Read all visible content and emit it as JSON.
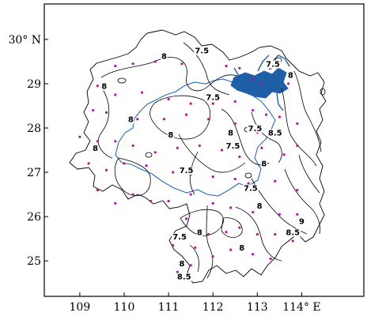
{
  "map": {
    "y_ticks": [
      {
        "value": 30,
        "label": "30° N"
      },
      {
        "value": 29,
        "label": "29"
      },
      {
        "value": 28,
        "label": "28"
      },
      {
        "value": 27,
        "label": "27"
      },
      {
        "value": 26,
        "label": "26"
      },
      {
        "value": 25,
        "label": "25"
      }
    ],
    "x_ticks": [
      {
        "value": 109,
        "label": "109"
      },
      {
        "value": 110,
        "label": "110"
      },
      {
        "value": 111,
        "label": "111"
      },
      {
        "value": 112,
        "label": "112"
      },
      {
        "value": 113,
        "label": "113"
      },
      {
        "value": 114,
        "label": "114° E"
      }
    ],
    "x_range": [
      108.2,
      115.4
    ],
    "y_range": [
      24.2,
      30.8
    ],
    "contour_labels": [
      {
        "text": "8",
        "lon": 110.9,
        "lat": 29.58
      },
      {
        "text": "7.5",
        "lon": 111.75,
        "lat": 29.7
      },
      {
        "text": "8",
        "lon": 109.55,
        "lat": 28.9
      },
      {
        "text": "7.5",
        "lon": 112.0,
        "lat": 28.65
      },
      {
        "text": "7.5",
        "lon": 113.35,
        "lat": 29.4
      },
      {
        "text": "8",
        "lon": 113.75,
        "lat": 29.15
      },
      {
        "text": "8",
        "lon": 110.15,
        "lat": 28.15
      },
      {
        "text": "8",
        "lon": 111.05,
        "lat": 27.8
      },
      {
        "text": "8",
        "lon": 112.4,
        "lat": 27.85
      },
      {
        "text": "7.5",
        "lon": 112.45,
        "lat": 27.55
      },
      {
        "text": "7.5",
        "lon": 112.95,
        "lat": 27.95
      },
      {
        "text": "8.5",
        "lon": 113.4,
        "lat": 27.85
      },
      {
        "text": "8",
        "lon": 109.35,
        "lat": 27.5
      },
      {
        "text": "7.5",
        "lon": 111.4,
        "lat": 27.0
      },
      {
        "text": "8",
        "lon": 113.15,
        "lat": 27.15
      },
      {
        "text": "7.5",
        "lon": 112.85,
        "lat": 26.6
      },
      {
        "text": "8",
        "lon": 113.05,
        "lat": 26.2
      },
      {
        "text": "9",
        "lon": 114.0,
        "lat": 25.85
      },
      {
        "text": "8.5",
        "lon": 113.8,
        "lat": 25.6
      },
      {
        "text": "8",
        "lon": 111.7,
        "lat": 25.6
      },
      {
        "text": "7.5",
        "lon": 111.25,
        "lat": 25.5
      },
      {
        "text": "8",
        "lon": 112.65,
        "lat": 25.25
      },
      {
        "text": "8",
        "lon": 111.3,
        "lat": 24.9
      },
      {
        "text": "8.5",
        "lon": 111.35,
        "lat": 24.6
      }
    ],
    "stations": [
      [
        109.8,
        29.4
      ],
      [
        110.2,
        29.45
      ],
      [
        110.7,
        29.5
      ],
      [
        111.3,
        29.45
      ],
      [
        111.6,
        29.7
      ],
      [
        112.3,
        29.4
      ],
      [
        112.6,
        29.35
      ],
      [
        112.9,
        29.1
      ],
      [
        113.1,
        29.0
      ],
      [
        113.3,
        29.35
      ],
      [
        113.7,
        29.0
      ],
      [
        109.4,
        28.95
      ],
      [
        109.8,
        28.75
      ],
      [
        110.4,
        28.8
      ],
      [
        111.0,
        28.65
      ],
      [
        111.5,
        28.55
      ],
      [
        112.0,
        28.55
      ],
      [
        112.5,
        28.6
      ],
      [
        112.9,
        28.4
      ],
      [
        113.2,
        28.3
      ],
      [
        113.5,
        28.25
      ],
      [
        113.9,
        28.1
      ],
      [
        109.3,
        28.4
      ],
      [
        109.6,
        28.35
      ],
      [
        110.3,
        28.2
      ],
      [
        110.9,
        28.2
      ],
      [
        111.4,
        28.3
      ],
      [
        111.9,
        28.2
      ],
      [
        112.5,
        28.1
      ],
      [
        113.0,
        27.9
      ],
      [
        113.5,
        27.95
      ],
      [
        113.9,
        27.6
      ],
      [
        109.0,
        27.8
      ],
      [
        109.4,
        27.7
      ],
      [
        109.8,
        27.7
      ],
      [
        110.2,
        27.6
      ],
      [
        110.7,
        27.45
      ],
      [
        111.2,
        27.55
      ],
      [
        111.7,
        27.6
      ],
      [
        112.2,
        27.5
      ],
      [
        112.6,
        27.35
      ],
      [
        113.1,
        27.55
      ],
      [
        113.6,
        27.4
      ],
      [
        109.2,
        27.2
      ],
      [
        109.6,
        27.05
      ],
      [
        110.0,
        27.2
      ],
      [
        110.5,
        27.15
      ],
      [
        111.1,
        27.0
      ],
      [
        111.5,
        26.95
      ],
      [
        112.0,
        26.9
      ],
      [
        112.5,
        26.85
      ],
      [
        112.8,
        26.75
      ],
      [
        113.4,
        26.8
      ],
      [
        113.9,
        26.6
      ],
      [
        109.4,
        26.6
      ],
      [
        109.8,
        26.3
      ],
      [
        110.2,
        26.5
      ],
      [
        110.6,
        26.35
      ],
      [
        111.0,
        26.35
      ],
      [
        111.5,
        26.5
      ],
      [
        112.0,
        26.3
      ],
      [
        112.4,
        26.2
      ],
      [
        112.9,
        26.1
      ],
      [
        113.5,
        26.05
      ],
      [
        113.9,
        26.05
      ],
      [
        111.4,
        25.95
      ],
      [
        111.9,
        25.6
      ],
      [
        112.3,
        25.65
      ],
      [
        112.6,
        25.75
      ],
      [
        113.0,
        25.6
      ],
      [
        113.4,
        25.6
      ],
      [
        113.8,
        25.45
      ],
      [
        111.1,
        25.35
      ],
      [
        111.6,
        25.3
      ],
      [
        112.0,
        25.1
      ],
      [
        112.4,
        25.25
      ],
      [
        112.9,
        25.15
      ],
      [
        113.3,
        25.05
      ],
      [
        111.5,
        24.9
      ],
      [
        111.2,
        24.75
      ]
    ]
  }
}
